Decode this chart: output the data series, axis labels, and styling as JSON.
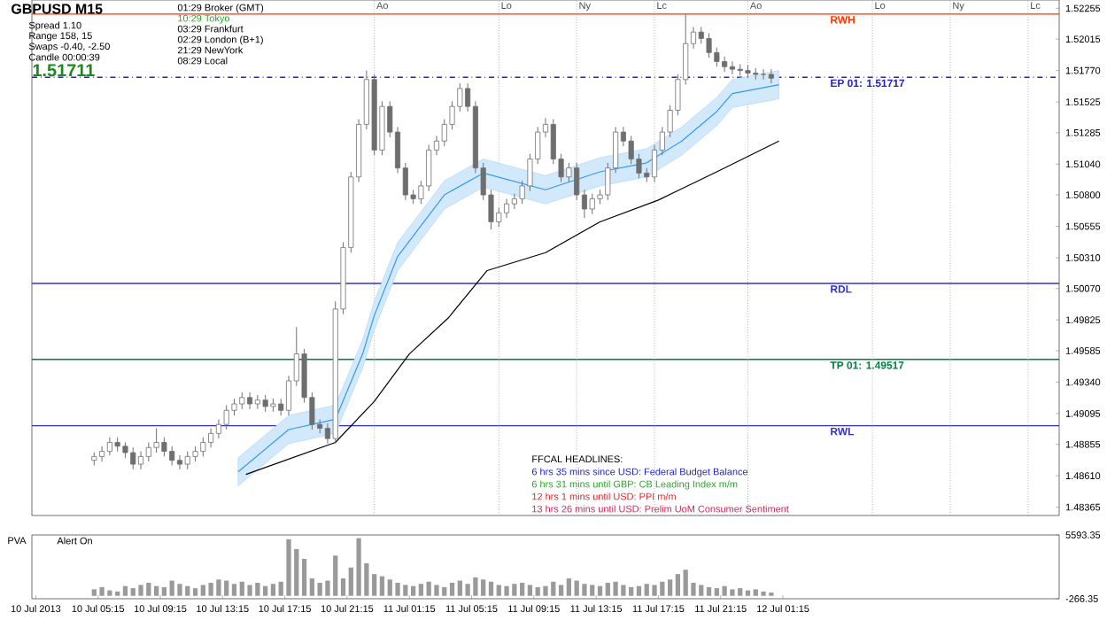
{
  "chart_data": [
    {
      "type": "candlestick",
      "color": "#6e6e6e",
      "tick_labels": "y",
      "xlim": [
        "2013-07-10T01:00",
        "2013-07-12T19:00"
      ],
      "ylim": [
        1.483,
        1.5232
      ],
      "yticks": [
        1.52255,
        1.52015,
        {
          "value": 1.5177,
          "label": "1.51770"
        },
        1.51525,
        1.51285,
        {
          "value": 1.5104,
          "label": "1.51040"
        },
        {
          "value": 1.508,
          "label": "1.50800"
        },
        1.50555,
        {
          "value": 1.5031,
          "label": "1.50310"
        },
        {
          "value": 1.5007,
          "label": "1.50070"
        },
        1.49825,
        1.49585,
        {
          "value": 1.4934,
          "label": "1.49340"
        },
        1.49095,
        1.48855,
        {
          "value": 1.4861,
          "label": "1.48610"
        },
        1.48365
      ],
      "x": [
        "2013-07-10T05:00",
        "2013-07-10T05:30",
        "2013-07-10T06:00",
        "2013-07-10T06:30",
        "2013-07-10T07:00",
        "2013-07-10T07:30",
        "2013-07-10T08:00",
        "2013-07-10T08:30",
        "2013-07-10T09:00",
        "2013-07-10T09:30",
        "2013-07-10T10:00",
        "2013-07-10T10:30",
        "2013-07-10T11:00",
        "2013-07-10T11:30",
        "2013-07-10T12:00",
        "2013-07-10T12:30",
        "2013-07-10T13:00",
        "2013-07-10T13:30",
        "2013-07-10T14:00",
        "2013-07-10T14:30",
        "2013-07-10T15:00",
        "2013-07-10T15:30",
        "2013-07-10T16:00",
        "2013-07-10T16:30",
        "2013-07-10T17:00",
        "2013-07-10T17:30",
        "2013-07-10T18:00",
        "2013-07-10T18:30",
        "2013-07-10T19:00",
        "2013-07-10T19:30",
        "2013-07-10T20:00",
        "2013-07-10T20:30",
        "2013-07-10T21:00",
        "2013-07-10T21:30",
        "2013-07-10T22:00",
        "2013-07-10T22:30",
        "2013-07-10T23:00",
        "2013-07-10T23:30",
        "2013-07-11T00:00",
        "2013-07-11T00:30",
        "2013-07-11T01:00",
        "2013-07-11T01:30",
        "2013-07-11T02:00",
        "2013-07-11T02:30",
        "2013-07-11T03:00",
        "2013-07-11T03:30",
        "2013-07-11T04:00",
        "2013-07-11T04:30",
        "2013-07-11T05:00",
        "2013-07-11T05:30",
        "2013-07-11T06:00",
        "2013-07-11T06:30",
        "2013-07-11T07:00",
        "2013-07-11T07:30",
        "2013-07-11T08:00",
        "2013-07-11T08:30",
        "2013-07-11T09:00",
        "2013-07-11T09:30",
        "2013-07-11T10:00",
        "2013-07-11T10:30",
        "2013-07-11T11:00",
        "2013-07-11T11:30",
        "2013-07-11T12:00",
        "2013-07-11T12:30",
        "2013-07-11T13:00",
        "2013-07-11T13:30",
        "2013-07-11T14:00",
        "2013-07-11T14:30",
        "2013-07-11T15:00",
        "2013-07-11T15:30",
        "2013-07-11T16:00",
        "2013-07-11T16:30",
        "2013-07-11T17:00",
        "2013-07-11T17:30",
        "2013-07-11T18:00",
        "2013-07-11T18:30",
        "2013-07-11T19:00",
        "2013-07-11T19:30",
        "2013-07-11T20:00",
        "2013-07-11T20:30",
        "2013-07-11T21:00",
        "2013-07-11T21:30",
        "2013-07-11T22:00",
        "2013-07-11T22:30",
        "2013-07-11T23:00",
        "2013-07-11T23:30",
        "2013-07-12T00:00",
        "2013-07-12T00:30"
      ],
      "ohlc": [
        [
          1.4873,
          1.4879,
          1.4869,
          1.4876
        ],
        [
          1.4876,
          1.4884,
          1.4872,
          1.488
        ],
        [
          1.488,
          1.4891,
          1.4877,
          1.4887
        ],
        [
          1.4887,
          1.4891,
          1.488,
          1.4884
        ],
        [
          1.4884,
          1.4887,
          1.4875,
          1.4879
        ],
        [
          1.4879,
          1.4883,
          1.4866,
          1.487
        ],
        [
          1.487,
          1.488,
          1.4866,
          1.4876
        ],
        [
          1.4876,
          1.4887,
          1.4872,
          1.4883
        ],
        [
          1.4883,
          1.4898,
          1.4879,
          1.4887
        ],
        [
          1.4887,
          1.4891,
          1.4876,
          1.488
        ],
        [
          1.488,
          1.4884,
          1.4869,
          1.4873
        ],
        [
          1.4873,
          1.4877,
          1.4866,
          1.487
        ],
        [
          1.487,
          1.488,
          1.4866,
          1.4876
        ],
        [
          1.4876,
          1.4884,
          1.4872,
          1.488
        ],
        [
          1.488,
          1.4891,
          1.4876,
          1.4887
        ],
        [
          1.4887,
          1.4898,
          1.4883,
          1.4894
        ],
        [
          1.4894,
          1.4905,
          1.489,
          1.4901
        ],
        [
          1.4901,
          1.4916,
          1.4897,
          1.4912
        ],
        [
          1.4912,
          1.4921,
          1.4908,
          1.4917
        ],
        [
          1.4917,
          1.4926,
          1.4913,
          1.4922
        ],
        [
          1.4922,
          1.4926,
          1.4913,
          1.4917
        ],
        [
          1.4917,
          1.4924,
          1.4913,
          1.492
        ],
        [
          1.492,
          1.4924,
          1.4911,
          1.4915
        ],
        [
          1.4915,
          1.4921,
          1.4911,
          1.4917
        ],
        [
          1.4917,
          1.4921,
          1.4908,
          1.4912
        ],
        [
          1.4912,
          1.4939,
          1.4908,
          1.4935
        ],
        [
          1.4935,
          1.4977,
          1.4931,
          1.4956
        ],
        [
          1.4956,
          1.496,
          1.4918,
          1.4922
        ],
        [
          1.4922,
          1.4926,
          1.4897,
          1.4901
        ],
        [
          1.4901,
          1.4905,
          1.4894,
          1.4898
        ],
        [
          1.4898,
          1.4902,
          1.4886,
          1.489
        ],
        [
          1.489,
          1.4997,
          1.4886,
          1.4991
        ],
        [
          1.4991,
          1.5043,
          1.4987,
          1.5039
        ],
        [
          1.5039,
          1.5098,
          1.5035,
          1.5094
        ],
        [
          1.5094,
          1.5139,
          1.509,
          1.5135
        ],
        [
          1.5135,
          1.5177,
          1.5131,
          1.517
        ],
        [
          1.517,
          1.5174,
          1.5111,
          1.5115
        ],
        [
          1.5115,
          1.5153,
          1.5111,
          1.5149
        ],
        [
          1.5149,
          1.5153,
          1.5125,
          1.5129
        ],
        [
          1.5129,
          1.5133,
          1.5097,
          1.5101
        ],
        [
          1.5101,
          1.5105,
          1.5076,
          1.508
        ],
        [
          1.508,
          1.5084,
          1.5073,
          1.5077
        ],
        [
          1.5077,
          1.5091,
          1.5073,
          1.5087
        ],
        [
          1.5087,
          1.5119,
          1.5083,
          1.5115
        ],
        [
          1.5115,
          1.5126,
          1.5111,
          1.5122
        ],
        [
          1.5122,
          1.5139,
          1.5118,
          1.5135
        ],
        [
          1.5135,
          1.5153,
          1.5131,
          1.5149
        ],
        [
          1.5149,
          1.5167,
          1.5145,
          1.5163
        ],
        [
          1.5163,
          1.5167,
          1.5145,
          1.5149
        ],
        [
          1.5149,
          1.5153,
          1.5097,
          1.5101
        ],
        [
          1.5101,
          1.5105,
          1.5076,
          1.508
        ],
        [
          1.508,
          1.5084,
          1.5053,
          1.5059
        ],
        [
          1.5059,
          1.507,
          1.5055,
          1.5066
        ],
        [
          1.5066,
          1.5077,
          1.5062,
          1.5073
        ],
        [
          1.5073,
          1.5081,
          1.5069,
          1.5077
        ],
        [
          1.5077,
          1.5091,
          1.5073,
          1.5087
        ],
        [
          1.5087,
          1.5112,
          1.5083,
          1.5108
        ],
        [
          1.5108,
          1.5133,
          1.5104,
          1.5129
        ],
        [
          1.5129,
          1.514,
          1.5125,
          1.5135
        ],
        [
          1.5135,
          1.5139,
          1.5104,
          1.5108
        ],
        [
          1.5108,
          1.5112,
          1.509,
          1.5094
        ],
        [
          1.5094,
          1.5105,
          1.509,
          1.5101
        ],
        [
          1.5101,
          1.5105,
          1.5076,
          1.508
        ],
        [
          1.508,
          1.5084,
          1.5062,
          1.5069
        ],
        [
          1.5069,
          1.5081,
          1.5065,
          1.5077
        ],
        [
          1.5077,
          1.5084,
          1.5073,
          1.508
        ],
        [
          1.508,
          1.5105,
          1.5076,
          1.5101
        ],
        [
          1.5101,
          1.5133,
          1.5097,
          1.5129
        ],
        [
          1.5129,
          1.5133,
          1.5118,
          1.5122
        ],
        [
          1.5122,
          1.5126,
          1.5104,
          1.5108
        ],
        [
          1.5108,
          1.5112,
          1.5093,
          1.5097
        ],
        [
          1.5097,
          1.5101,
          1.509,
          1.5094
        ],
        [
          1.5094,
          1.5119,
          1.509,
          1.5115
        ],
        [
          1.5115,
          1.5133,
          1.5111,
          1.5129
        ],
        [
          1.5129,
          1.515,
          1.5125,
          1.5146
        ],
        [
          1.5146,
          1.5174,
          1.5142,
          1.517
        ],
        [
          1.517,
          1.5221,
          1.5166,
          1.5198
        ],
        [
          1.5198,
          1.5211,
          1.5194,
          1.5207
        ],
        [
          1.5207,
          1.5211,
          1.5198,
          1.5202
        ],
        [
          1.5202,
          1.5206,
          1.5187,
          1.5191
        ],
        [
          1.5191,
          1.5195,
          1.518,
          1.5184
        ],
        [
          1.5184,
          1.5188,
          1.5176,
          1.518
        ],
        [
          1.518,
          1.5184,
          1.5174,
          1.5178
        ],
        [
          1.5178,
          1.5182,
          1.5173,
          1.5177
        ],
        [
          1.5177,
          1.5181,
          1.5171,
          1.5175
        ],
        [
          1.5175,
          1.5179,
          1.517,
          1.5174
        ],
        [
          1.5174,
          1.5178,
          1.517,
          1.5174
        ],
        [
          1.5174,
          1.5178,
          1.5167,
          1.5171
        ]
      ],
      "series": [
        {
          "type": "line",
          "color": "#3399ee",
          "x": [
            "2013-07-10T14:15",
            "2013-07-10T17:30",
            "2013-07-10T20:30",
            "2013-07-10T22:15",
            "2013-07-10T23:00",
            "2013-07-11T00:30",
            "2013-07-11T03:30",
            "2013-07-11T06:00",
            "2013-07-11T10:00",
            "2013-07-11T13:30",
            "2013-07-11T16:30",
            "2013-07-11T18:45",
            "2013-07-11T21:00",
            "2013-07-11T22:00",
            "2013-07-12T01:00"
          ],
          "values": [
            1.4864,
            1.4897,
            1.4905,
            1.4956,
            1.4986,
            1.5032,
            1.508,
            1.5097,
            1.5084,
            1.5098,
            1.5105,
            1.5122,
            1.5145,
            1.5159,
            1.5166
          ],
          "upper": [
            1.4875,
            1.4908,
            1.4916,
            1.4967,
            1.4997,
            1.5043,
            1.5091,
            1.5108,
            1.5095,
            1.5109,
            1.5116,
            1.5133,
            1.5156,
            1.517,
            1.5177
          ],
          "lower": [
            1.4853,
            1.4886,
            1.4894,
            1.4945,
            1.4975,
            1.5021,
            1.5069,
            1.5086,
            1.5073,
            1.5087,
            1.5094,
            1.5111,
            1.5134,
            1.5148,
            1.5155
          ]
        },
        {
          "type": "line",
          "color": "#000000",
          "x": [
            "2013-07-10T14:45",
            "2013-07-10T20:30",
            "2013-07-10T23:00",
            "2013-07-11T01:15",
            "2013-07-11T03:45",
            "2013-07-11T06:15",
            "2013-07-11T10:00",
            "2013-07-11T13:30",
            "2013-07-11T17:15",
            "2013-07-11T21:00",
            "2013-07-12T01:00"
          ],
          "values": [
            1.4862,
            1.4887,
            1.4919,
            1.4956,
            1.4984,
            1.5021,
            1.5035,
            1.5059,
            1.5076,
            1.5098,
            1.5122
          ]
        }
      ],
      "ref_lines": [
        {
          "axis": "y",
          "value": 1.5221,
          "label": "RWH",
          "color": "#ff3300",
          "line_style": "solid"
        },
        {
          "axis": "y",
          "value": 1.51717,
          "label": "EP 01: 1.51717",
          "color": "#2222cc",
          "line_style": "dashed"
        },
        {
          "axis": "y",
          "value": 1.5011,
          "label": "RDL",
          "color": "#3333cc",
          "line_style": "solid"
        },
        {
          "axis": "y",
          "value": 1.49517,
          "label": "TP 01: 1.49517",
          "color": "#008040",
          "line_style": "solid"
        },
        {
          "axis": "y",
          "value": 1.49,
          "label": "RWL",
          "color": "#3333cc",
          "line_style": "solid"
        },
        {
          "axis": "x",
          "value": "2013-07-10T23:00",
          "label": "Ao",
          "color": "#b0b0b0",
          "line_style": "dotted"
        },
        {
          "axis": "x",
          "value": "2013-07-11T07:00",
          "label": "Lo",
          "color": "#b0b0b0",
          "line_style": "dotted"
        },
        {
          "axis": "x",
          "value": "2013-07-11T12:00",
          "label": "Ny",
          "color": "#b0b0b0",
          "line_style": "dotted"
        },
        {
          "axis": "x",
          "value": "2013-07-11T17:00",
          "label": "Lc",
          "color": "#b0b0b0",
          "line_style": "dotted"
        },
        {
          "axis": "x",
          "value": "2013-07-11T23:00",
          "label": "Ao",
          "color": "#b0b0b0",
          "line_style": "dotted"
        },
        {
          "axis": "x",
          "value": "2013-07-12T07:00",
          "label": "Lo",
          "color": "#b0b0b0",
          "line_style": "dotted"
        },
        {
          "axis": "x",
          "value": "2013-07-12T12:00",
          "label": "Ny",
          "color": "#b0b0b0",
          "line_style": "dotted"
        },
        {
          "axis": "x",
          "value": "2013-07-12T17:00",
          "label": "Lc",
          "color": "#b0b0b0",
          "line_style": "dotted"
        }
      ],
      "annotations": [
        "GBPUSD  M15",
        "Spread  1.10",
        "Range  158, 15",
        "Swaps  -0.40, -2.50",
        "Candle  00:00:39",
        "1.51711",
        "01:29  Broker (GMT)",
        "10:29  Tokyo",
        "03:29  Frankfurt",
        "02:29  London (B+1)",
        "21:29  NewYork",
        "08:29  Local",
        "FFCAL HEADLINES:",
        "6 hrs 35 mins since USD: Federal Budget Balance",
        "6 hrs 31 mins until GBP: CB Leading Index m/m",
        "12 hrs 1 mins until USD: PPI m/m",
        "13 hrs 26 mins until USD: Prelim UoM Consumer Sentiment"
      ]
    },
    {
      "type": "bar",
      "color": "#9a9a9a",
      "xlim": [
        "2013-07-10T01:00",
        "2013-07-12T19:00"
      ],
      "ylim": [
        -266.35,
        5593.35
      ],
      "yticks": [
        5593.35,
        -266.35
      ],
      "xticks": [
        {
          "value": "2013-07-10T01:15",
          "label": "10 Jul 2013"
        },
        {
          "value": "2013-07-10T05:15",
          "label": "10 Jul 05:15"
        },
        {
          "value": "2013-07-10T09:15",
          "label": "10 Jul 09:15"
        },
        {
          "value": "2013-07-10T13:15",
          "label": "10 Jul 13:15"
        },
        {
          "value": "2013-07-10T17:15",
          "label": "10 Jul 17:15"
        },
        {
          "value": "2013-07-10T21:15",
          "label": "10 Jul 21:15"
        },
        {
          "value": "2013-07-11T01:15",
          "label": "11 Jul 01:15"
        },
        {
          "value": "2013-07-11T05:15",
          "label": "11 Jul 05:15"
        },
        {
          "value": "2013-07-11T09:15",
          "label": "11 Jul 09:15"
        },
        {
          "value": "2013-07-11T13:15",
          "label": "11 Jul 13:15"
        },
        {
          "value": "2013-07-11T17:15",
          "label": "11 Jul 17:15"
        },
        {
          "value": "2013-07-11T21:15",
          "label": "11 Jul 21:15"
        },
        {
          "value": "2013-07-12T01:15",
          "label": "12 Jul 01:15"
        }
      ],
      "x": [
        "2013-07-10T05:00",
        "2013-07-10T05:30",
        "2013-07-10T06:00",
        "2013-07-10T06:30",
        "2013-07-10T07:00",
        "2013-07-10T07:30",
        "2013-07-10T08:00",
        "2013-07-10T08:30",
        "2013-07-10T09:00",
        "2013-07-10T09:30",
        "2013-07-10T10:00",
        "2013-07-10T10:30",
        "2013-07-10T11:00",
        "2013-07-10T11:30",
        "2013-07-10T12:00",
        "2013-07-10T12:30",
        "2013-07-10T13:00",
        "2013-07-10T13:30",
        "2013-07-10T14:00",
        "2013-07-10T14:30",
        "2013-07-10T15:00",
        "2013-07-10T15:30",
        "2013-07-10T16:00",
        "2013-07-10T16:30",
        "2013-07-10T17:00",
        "2013-07-10T17:30",
        "2013-07-10T18:00",
        "2013-07-10T18:30",
        "2013-07-10T19:00",
        "2013-07-10T19:30",
        "2013-07-10T20:00",
        "2013-07-10T20:30",
        "2013-07-10T21:00",
        "2013-07-10T21:30",
        "2013-07-10T22:00",
        "2013-07-10T22:30",
        "2013-07-10T23:00",
        "2013-07-10T23:30",
        "2013-07-11T00:00",
        "2013-07-11T00:30",
        "2013-07-11T01:00",
        "2013-07-11T01:30",
        "2013-07-11T02:00",
        "2013-07-11T02:30",
        "2013-07-11T03:00",
        "2013-07-11T03:30",
        "2013-07-11T04:00",
        "2013-07-11T04:30",
        "2013-07-11T05:00",
        "2013-07-11T05:30",
        "2013-07-11T06:00",
        "2013-07-11T06:30",
        "2013-07-11T07:00",
        "2013-07-11T07:30",
        "2013-07-11T08:00",
        "2013-07-11T08:30",
        "2013-07-11T09:00",
        "2013-07-11T09:30",
        "2013-07-11T10:00",
        "2013-07-11T10:30",
        "2013-07-11T11:00",
        "2013-07-11T11:30",
        "2013-07-11T12:00",
        "2013-07-11T12:30",
        "2013-07-11T13:00",
        "2013-07-11T13:30",
        "2013-07-11T14:00",
        "2013-07-11T14:30",
        "2013-07-11T15:00",
        "2013-07-11T15:30",
        "2013-07-11T16:00",
        "2013-07-11T16:30",
        "2013-07-11T17:00",
        "2013-07-11T17:30",
        "2013-07-11T18:00",
        "2013-07-11T18:30",
        "2013-07-11T19:00",
        "2013-07-11T19:30",
        "2013-07-11T20:00",
        "2013-07-11T20:30",
        "2013-07-11T21:00",
        "2013-07-11T21:30",
        "2013-07-11T22:00",
        "2013-07-11T22:30",
        "2013-07-11T23:00",
        "2013-07-11T23:30",
        "2013-07-12T00:00",
        "2013-07-12T00:30"
      ],
      "values": [
        600,
        800,
        500,
        400,
        900,
        700,
        1000,
        1200,
        900,
        800,
        1400,
        1100,
        900,
        700,
        1000,
        1200,
        1500,
        1400,
        1100,
        1300,
        1000,
        1200,
        900,
        1100,
        1300,
        5200,
        4300,
        3400,
        1600,
        1200,
        1400,
        3700,
        1600,
        2600,
        5300,
        3000,
        2000,
        1800,
        1500,
        1200,
        1000,
        900,
        1100,
        1300,
        1000,
        800,
        1200,
        1400,
        1100,
        1700,
        1500,
        1300,
        1000,
        900,
        1100,
        1200,
        1000,
        800,
        900,
        1300,
        1000,
        1600,
        1400,
        1100,
        1000,
        900,
        1200,
        1300,
        1000,
        800,
        900,
        1100,
        1000,
        1300,
        1500,
        2000,
        2400,
        1200,
        1000,
        800,
        700,
        900,
        600,
        700,
        500,
        600,
        400,
        300
      ],
      "annotations": [
        "PVA",
        "Alert On"
      ]
    }
  ]
}
